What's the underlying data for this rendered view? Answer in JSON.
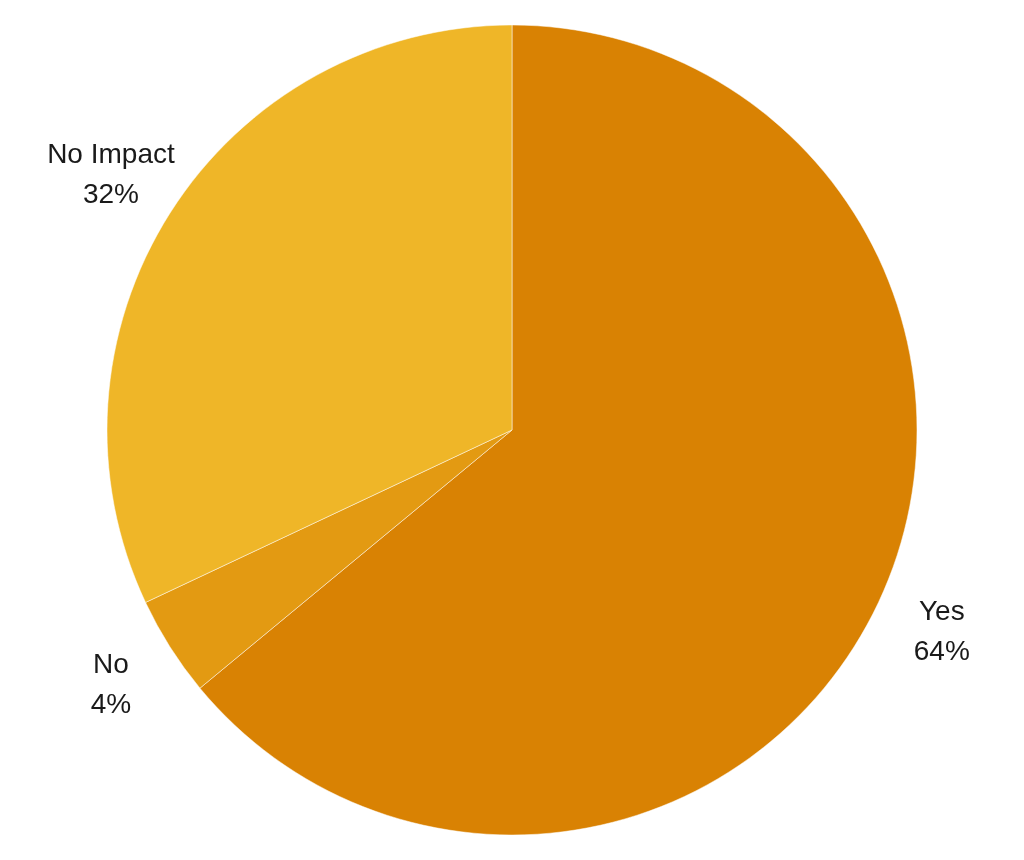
{
  "chart_data": {
    "type": "pie",
    "categories": [
      "Yes",
      "No",
      "No Impact"
    ],
    "values": [
      64,
      4,
      32
    ],
    "value_labels": [
      "64%",
      "4%",
      "32%"
    ],
    "colors": [
      "#d98203",
      "#e39a12",
      "#efb628"
    ],
    "legend": false
  }
}
